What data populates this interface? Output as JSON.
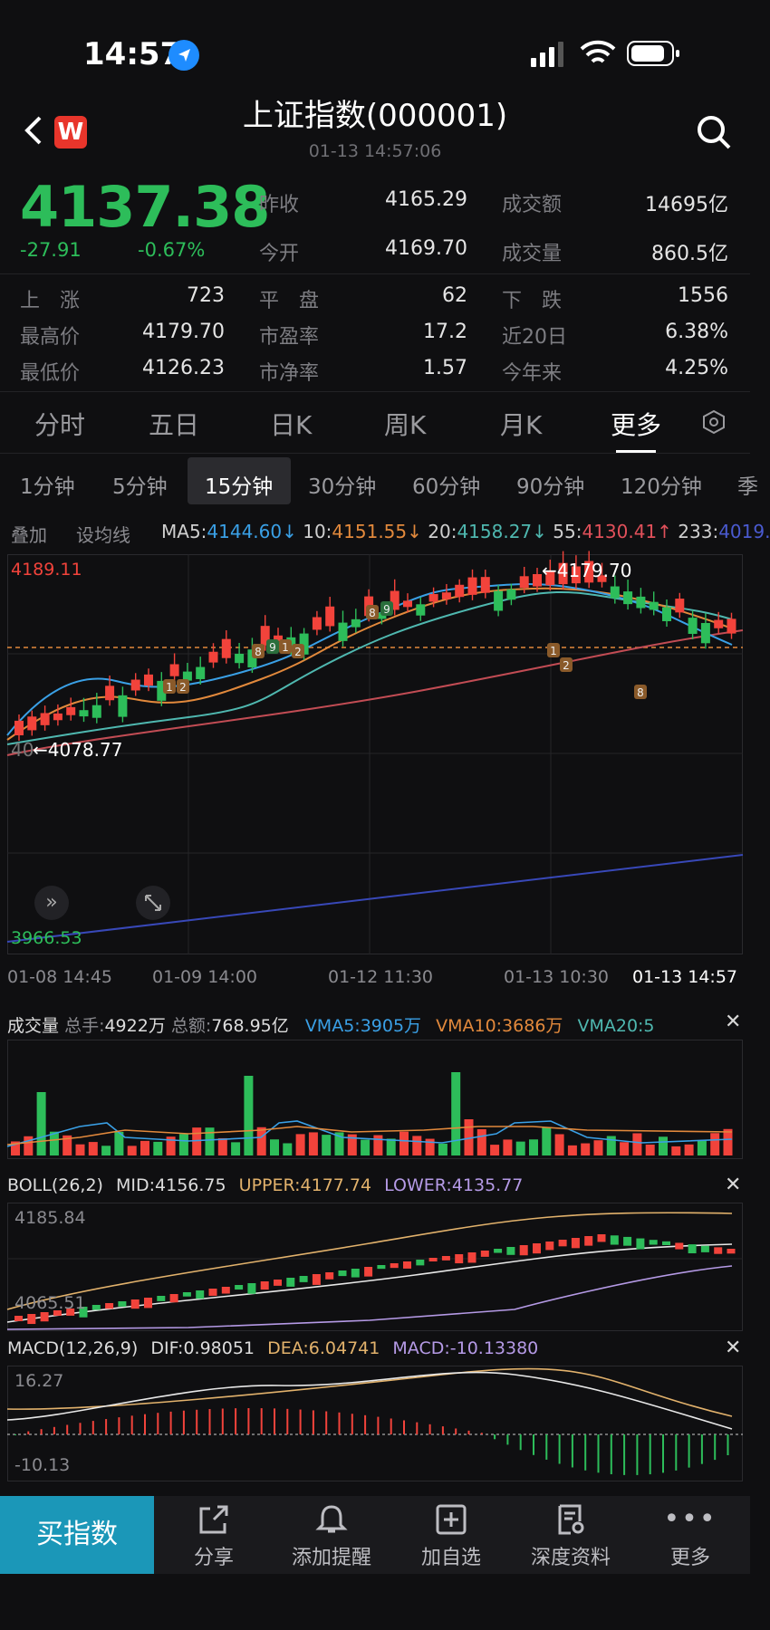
{
  "status_bar": {
    "time": "14:57"
  },
  "header": {
    "title": "上证指数(000001)",
    "subtitle": "01-13 14:57:06",
    "logo_letter": "W"
  },
  "quote": {
    "price": "4137.38",
    "change": "-27.91",
    "change_pct": "-0.67%",
    "stats": [
      {
        "label": "昨收",
        "value": "4165.29"
      },
      {
        "label": "成交额",
        "value": "14695亿"
      },
      {
        "label": "今开",
        "value": "4169.70"
      },
      {
        "label": "成交量",
        "value": "860.5亿"
      }
    ],
    "breadth": [
      {
        "label": "上　涨",
        "value": "723"
      },
      {
        "label": "平　盘",
        "value": "62"
      },
      {
        "label": "下　跌",
        "value": "1556"
      },
      {
        "label": "最高价",
        "value": "4179.70"
      },
      {
        "label": "市盈率",
        "value": "17.2"
      },
      {
        "label": "近20日",
        "value": "6.38%"
      },
      {
        "label": "最低价",
        "value": "4126.23"
      },
      {
        "label": "市净率",
        "value": "1.57"
      },
      {
        "label": "今年来",
        "value": "4.25%"
      }
    ]
  },
  "period_tabs": [
    "分时",
    "五日",
    "日K",
    "周K",
    "月K",
    "更多"
  ],
  "minute_tabs": [
    "1分钟",
    "5分钟",
    "15分钟",
    "30分钟",
    "60分钟",
    "90分钟",
    "120分钟",
    "季"
  ],
  "ma_row": {
    "overlay": "叠加",
    "set_ma": "设均线",
    "ma5_label": "MA5:",
    "ma5": "4144.60↓",
    "ma10_label": "10:",
    "ma10": "4151.55↓",
    "ma20_label": "20:",
    "ma20": "4158.27↓",
    "ma55_label": "55:",
    "ma55": "4130.41↑",
    "ma233_label": "233:",
    "ma233": "4019."
  },
  "kchart": {
    "top_label": "4189.11",
    "bottom_label": "3966.53",
    "high_marker": "←4179.70",
    "low_marker": "←4078.77",
    "low_prefix": "40",
    "x_labels": [
      "01-08 14:45",
      "01-09 14:00",
      "01-12 11:30",
      "01-13 10:30",
      "01-13 14:57"
    ],
    "td_marks": [
      "1",
      "2",
      "8",
      "9",
      "1",
      "2",
      "8",
      "9",
      "1",
      "2",
      "8"
    ]
  },
  "volume": {
    "title": "成交量",
    "total_hand_label": "总手:",
    "total_hand": "4922万",
    "total_amount_label": "总额:",
    "total_amount": "768.95亿",
    "vma5": "VMA5:3905万",
    "vma10": "VMA10:3686万",
    "vma20": "VMA20:5"
  },
  "boll": {
    "title": "BOLL(26,2)",
    "mid": "MID:4156.75",
    "upper": "UPPER:4177.74",
    "lower": "LOWER:4135.77",
    "top_label": "4185.84",
    "bottom_label": "4065.51"
  },
  "macd": {
    "title": "MACD(12,26,9)",
    "dif": "DIF:0.98051",
    "dea": "DEA:6.04741",
    "macd": "MACD:-10.13380",
    "top_label": "16.27",
    "bottom_label": "-10.13"
  },
  "nav": {
    "buy": "买指数",
    "items": [
      "分享",
      "添加提醒",
      "加自选",
      "深度资料",
      "更多"
    ]
  },
  "colors": {
    "up": "#f2433b",
    "down": "#2dbd5a",
    "accent": "#1b97b8"
  }
}
